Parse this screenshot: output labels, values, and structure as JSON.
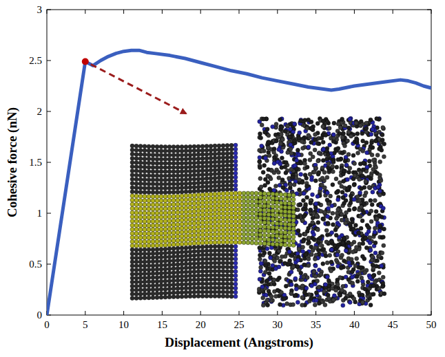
{
  "chart_data": {
    "type": "line",
    "x_label": "Displacement (Angstroms)",
    "y_label": "Cohesive force (nN)",
    "x": [
      0,
      5,
      6,
      7,
      8,
      9,
      10,
      11,
      12,
      13,
      14,
      16,
      18,
      20,
      22,
      24,
      26,
      28,
      30,
      32,
      34,
      36,
      37,
      38,
      40,
      42,
      44,
      46,
      47,
      48,
      49,
      50
    ],
    "values": [
      0,
      2.49,
      2.45,
      2.5,
      2.54,
      2.57,
      2.59,
      2.6,
      2.6,
      2.58,
      2.57,
      2.55,
      2.52,
      2.48,
      2.44,
      2.4,
      2.37,
      2.33,
      2.3,
      2.27,
      2.24,
      2.22,
      2.21,
      2.22,
      2.25,
      2.27,
      2.29,
      2.31,
      2.3,
      2.28,
      2.25,
      2.23
    ],
    "color": "#3a5fbf",
    "marker": "none",
    "line_style": "solid",
    "grid": false,
    "xlim": [
      0,
      50
    ],
    "xticks": [
      0,
      5,
      10,
      15,
      20,
      25,
      30,
      35,
      40,
      45,
      50
    ],
    "ylim": [
      0,
      3
    ],
    "yticks": [
      0,
      0.5,
      1,
      1.5,
      2,
      2.5,
      3
    ],
    "highlight": {
      "x": 5,
      "y": 2.49,
      "color": "#c00000"
    }
  }
}
